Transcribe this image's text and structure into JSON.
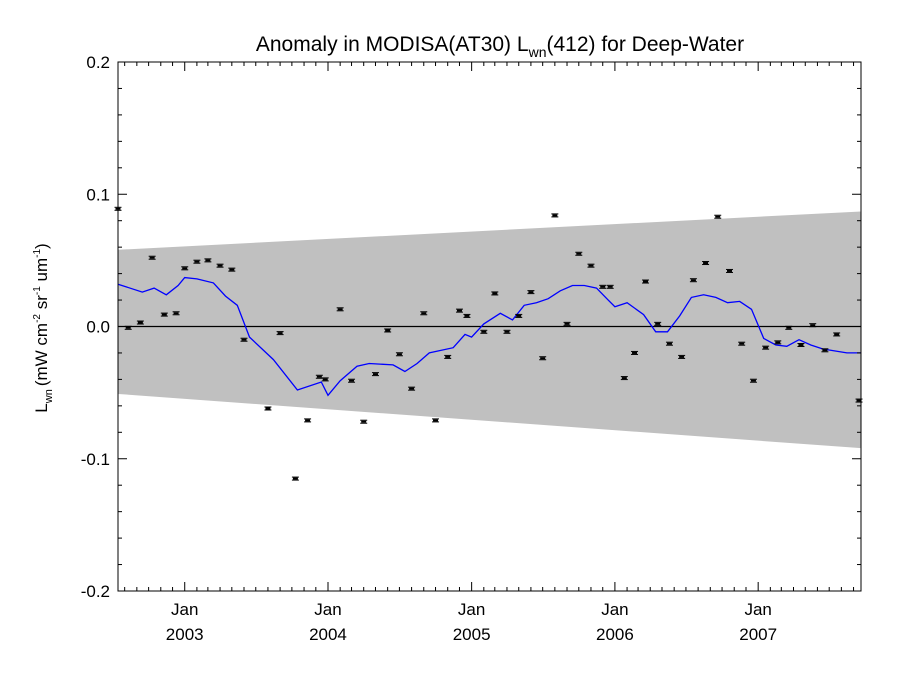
{
  "chart_data": {
    "type": "scatter",
    "title": "Anomaly in MODISA(AT30) L",
    "title_sub": "wn",
    "title_tail": "(412) for Deep-Water",
    "ylabel_main": "L",
    "ylabel_sub": "wn",
    "ylabel_units": "(mW cm",
    "ylabel_sup1": "-2",
    "ylabel_mid": " sr",
    "ylabel_sup2": "-1",
    "ylabel_mid2": " um",
    "ylabel_sup3": "-1",
    "ylabel_end": ")",
    "ylim": [
      -0.2,
      0.2
    ],
    "yticks": [
      {
        "value": 0.2,
        "label": "0.2"
      },
      {
        "value": 0.1,
        "label": "0.1"
      },
      {
        "value": 0.0,
        "label": "0.0"
      },
      {
        "value": -0.1,
        "label": "-0.1"
      },
      {
        "value": -0.2,
        "label": "-0.2"
      }
    ],
    "xlim": [
      "2002-07-15",
      "2007-09-20"
    ],
    "xticks": [
      {
        "date": "2003-01-01",
        "month": "Jan",
        "year": "2003"
      },
      {
        "date": "2004-01-01",
        "month": "Jan",
        "year": "2004"
      },
      {
        "date": "2005-01-01",
        "month": "Jan",
        "year": "2005"
      },
      {
        "date": "2006-01-01",
        "month": "Jan",
        "year": "2006"
      },
      {
        "date": "2007-01-01",
        "month": "Jan",
        "year": "2007"
      }
    ],
    "grid": false,
    "band": {
      "color": "#c0c0c0",
      "upper": [
        {
          "date": "2002-07-15",
          "y": 0.058
        },
        {
          "date": "2007-09-20",
          "y": 0.087
        }
      ],
      "lower": [
        {
          "date": "2002-07-15",
          "y": -0.051
        },
        {
          "date": "2007-09-20",
          "y": -0.092
        }
      ]
    },
    "zero_line": 0.0,
    "series": [
      {
        "kind": "points",
        "color": "#000000",
        "points": [
          {
            "x": "2002-07-15",
            "y": 0.089
          },
          {
            "x": "2002-08-10",
            "y": -0.001
          },
          {
            "x": "2002-09-10",
            "y": 0.003
          },
          {
            "x": "2002-10-10",
            "y": 0.052
          },
          {
            "x": "2002-11-10",
            "y": 0.009
          },
          {
            "x": "2002-12-10",
            "y": 0.01
          },
          {
            "x": "2003-01-01",
            "y": 0.044
          },
          {
            "x": "2003-02-01",
            "y": 0.049
          },
          {
            "x": "2003-03-01",
            "y": 0.05
          },
          {
            "x": "2003-04-01",
            "y": 0.046
          },
          {
            "x": "2003-05-01",
            "y": 0.043
          },
          {
            "x": "2003-06-01",
            "y": -0.01
          },
          {
            "x": "2003-08-01",
            "y": -0.062
          },
          {
            "x": "2003-09-01",
            "y": -0.005
          },
          {
            "x": "2003-10-10",
            "y": -0.115
          },
          {
            "x": "2003-11-10",
            "y": -0.071
          },
          {
            "x": "2003-12-10",
            "y": -0.038
          },
          {
            "x": "2003-12-25",
            "y": -0.04
          },
          {
            "x": "2004-02-01",
            "y": 0.013
          },
          {
            "x": "2004-03-01",
            "y": -0.041
          },
          {
            "x": "2004-04-01",
            "y": -0.072
          },
          {
            "x": "2004-05-01",
            "y": -0.036
          },
          {
            "x": "2004-06-01",
            "y": -0.003
          },
          {
            "x": "2004-07-01",
            "y": -0.021
          },
          {
            "x": "2004-08-01",
            "y": -0.047
          },
          {
            "x": "2004-09-01",
            "y": 0.01
          },
          {
            "x": "2004-10-01",
            "y": -0.071
          },
          {
            "x": "2004-11-01",
            "y": -0.023
          },
          {
            "x": "2004-12-01",
            "y": 0.012
          },
          {
            "x": "2004-12-20",
            "y": 0.008
          },
          {
            "x": "2005-02-01",
            "y": -0.004
          },
          {
            "x": "2005-03-01",
            "y": 0.025
          },
          {
            "x": "2005-04-01",
            "y": -0.004
          },
          {
            "x": "2005-05-01",
            "y": 0.008
          },
          {
            "x": "2005-06-01",
            "y": 0.026
          },
          {
            "x": "2005-07-01",
            "y": -0.024
          },
          {
            "x": "2005-08-01",
            "y": 0.084
          },
          {
            "x": "2005-09-01",
            "y": 0.002
          },
          {
            "x": "2005-10-01",
            "y": 0.055
          },
          {
            "x": "2005-11-01",
            "y": 0.046
          },
          {
            "x": "2005-12-01",
            "y": 0.03
          },
          {
            "x": "2005-12-20",
            "y": 0.03
          },
          {
            "x": "2006-01-25",
            "y": -0.039
          },
          {
            "x": "2006-02-20",
            "y": -0.02
          },
          {
            "x": "2006-03-20",
            "y": 0.034
          },
          {
            "x": "2006-04-20",
            "y": 0.002
          },
          {
            "x": "2006-05-20",
            "y": -0.013
          },
          {
            "x": "2006-06-20",
            "y": -0.023
          },
          {
            "x": "2006-07-20",
            "y": 0.035
          },
          {
            "x": "2006-08-20",
            "y": 0.048
          },
          {
            "x": "2006-09-20",
            "y": 0.083
          },
          {
            "x": "2006-10-20",
            "y": 0.042
          },
          {
            "x": "2006-11-20",
            "y": -0.013
          },
          {
            "x": "2006-12-20",
            "y": -0.041
          },
          {
            "x": "2007-01-20",
            "y": -0.016
          },
          {
            "x": "2007-02-20",
            "y": -0.012
          },
          {
            "x": "2007-03-20",
            "y": -0.001
          },
          {
            "x": "2007-04-20",
            "y": -0.014
          },
          {
            "x": "2007-05-20",
            "y": 0.001
          },
          {
            "x": "2007-06-20",
            "y": -0.018
          },
          {
            "x": "2007-07-20",
            "y": -0.006
          },
          {
            "x": "2007-09-15",
            "y": -0.056
          }
        ]
      },
      {
        "kind": "line",
        "color": "#0000ff",
        "points": [
          {
            "x": "2002-07-15",
            "y": 0.032
          },
          {
            "x": "2002-09-15",
            "y": 0.026
          },
          {
            "x": "2002-10-15",
            "y": 0.029
          },
          {
            "x": "2002-11-15",
            "y": 0.024
          },
          {
            "x": "2002-12-15",
            "y": 0.031
          },
          {
            "x": "2003-01-01",
            "y": 0.037
          },
          {
            "x": "2003-02-01",
            "y": 0.036
          },
          {
            "x": "2003-03-15",
            "y": 0.033
          },
          {
            "x": "2003-04-15",
            "y": 0.023
          },
          {
            "x": "2003-05-15",
            "y": 0.016
          },
          {
            "x": "2003-06-15",
            "y": -0.008
          },
          {
            "x": "2003-08-15",
            "y": -0.025
          },
          {
            "x": "2003-10-15",
            "y": -0.048
          },
          {
            "x": "2003-12-15",
            "y": -0.042
          },
          {
            "x": "2004-01-01",
            "y": -0.052
          },
          {
            "x": "2004-02-01",
            "y": -0.041
          },
          {
            "x": "2004-03-15",
            "y": -0.03
          },
          {
            "x": "2004-04-15",
            "y": -0.028
          },
          {
            "x": "2004-06-15",
            "y": -0.029
          },
          {
            "x": "2004-07-15",
            "y": -0.034
          },
          {
            "x": "2004-08-15",
            "y": -0.028
          },
          {
            "x": "2004-09-15",
            "y": -0.02
          },
          {
            "x": "2004-11-15",
            "y": -0.016
          },
          {
            "x": "2004-12-15",
            "y": -0.006
          },
          {
            "x": "2005-01-01",
            "y": -0.008
          },
          {
            "x": "2005-02-01",
            "y": 0.002
          },
          {
            "x": "2005-03-15",
            "y": 0.01
          },
          {
            "x": "2005-04-15",
            "y": 0.005
          },
          {
            "x": "2005-05-15",
            "y": 0.016
          },
          {
            "x": "2005-06-15",
            "y": 0.018
          },
          {
            "x": "2005-07-15",
            "y": 0.021
          },
          {
            "x": "2005-08-15",
            "y": 0.027
          },
          {
            "x": "2005-09-15",
            "y": 0.031
          },
          {
            "x": "2005-10-15",
            "y": 0.031
          },
          {
            "x": "2005-11-15",
            "y": 0.029
          },
          {
            "x": "2005-12-15",
            "y": 0.02
          },
          {
            "x": "2006-01-01",
            "y": 0.015
          },
          {
            "x": "2006-02-01",
            "y": 0.018
          },
          {
            "x": "2006-03-15",
            "y": 0.009
          },
          {
            "x": "2006-04-15",
            "y": -0.004
          },
          {
            "x": "2006-05-15",
            "y": -0.004
          },
          {
            "x": "2006-06-15",
            "y": 0.008
          },
          {
            "x": "2006-07-15",
            "y": 0.022
          },
          {
            "x": "2006-08-15",
            "y": 0.024
          },
          {
            "x": "2006-09-15",
            "y": 0.022
          },
          {
            "x": "2006-10-15",
            "y": 0.018
          },
          {
            "x": "2006-11-15",
            "y": 0.019
          },
          {
            "x": "2006-12-15",
            "y": 0.013
          },
          {
            "x": "2007-01-15",
            "y": -0.009
          },
          {
            "x": "2007-02-15",
            "y": -0.014
          },
          {
            "x": "2007-03-15",
            "y": -0.015
          },
          {
            "x": "2007-04-15",
            "y": -0.01
          },
          {
            "x": "2007-05-15",
            "y": -0.014
          },
          {
            "x": "2007-06-15",
            "y": -0.017
          },
          {
            "x": "2007-08-15",
            "y": -0.02
          },
          {
            "x": "2007-09-20",
            "y": -0.02
          }
        ]
      }
    ]
  }
}
